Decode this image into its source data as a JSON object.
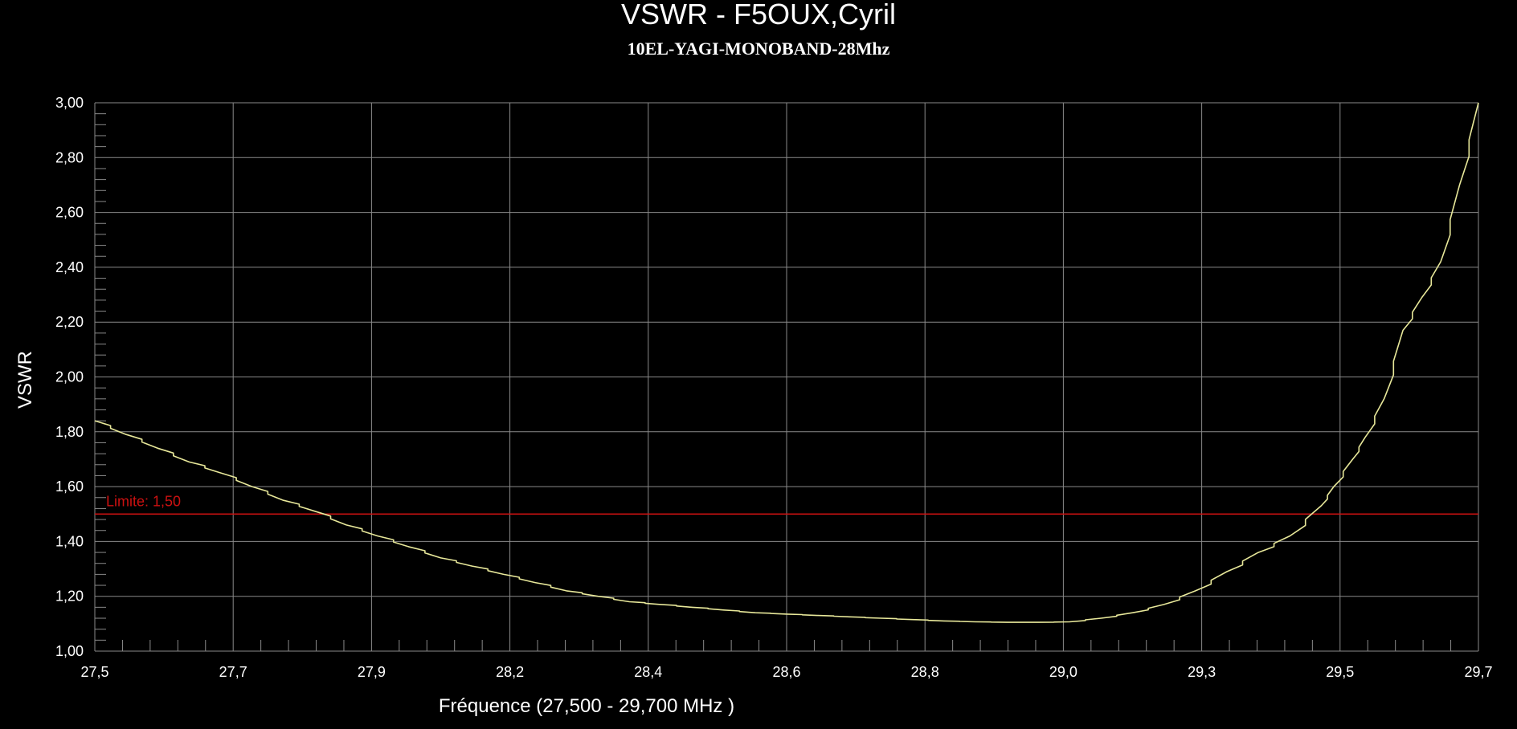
{
  "chart_data": {
    "type": "line",
    "title": "VSWR - F5OUX,Cyril",
    "subtitle": "10EL-YAGI-MONOBAND-28Mhz",
    "xlabel": "Fréquence (27,500 - 29,700 MHz )",
    "ylabel": "VSWR",
    "xlim": [
      27.5,
      29.7
    ],
    "ylim": [
      1.0,
      3.0
    ],
    "x_tick_labels": [
      "27,5",
      "27,7",
      "27,9",
      "28,2",
      "28,4",
      "28,6",
      "28,8",
      "29,0",
      "29,3",
      "29,5",
      "29,7"
    ],
    "y_tick_labels": [
      "3,00",
      "2,80",
      "2,60",
      "2,40",
      "2,20",
      "2,00",
      "1,80",
      "1,60",
      "1,40",
      "1,20",
      "1,00"
    ],
    "grid": true,
    "background": "#000000",
    "grid_color": "#8a8a8a",
    "limit": {
      "value": 1.5,
      "label": "Limite: 1,50",
      "color": "#cc1111"
    },
    "series": [
      {
        "color": "#e8e89a",
        "x": [
          27.5,
          27.55,
          27.6,
          27.65,
          27.7,
          27.75,
          27.8,
          27.85,
          27.9,
          27.95,
          28.0,
          28.05,
          28.1,
          28.15,
          28.2,
          28.25,
          28.3,
          28.35,
          28.4,
          28.45,
          28.5,
          28.55,
          28.6,
          28.65,
          28.7,
          28.75,
          28.8,
          28.85,
          28.9,
          28.95,
          29.0,
          29.05,
          29.1,
          29.15,
          29.2,
          29.25,
          29.3,
          29.35,
          29.4,
          29.45,
          29.47,
          29.5,
          29.52,
          29.55,
          29.58,
          29.61,
          29.64,
          29.67,
          29.7
        ],
        "y": [
          1.84,
          1.79,
          1.74,
          1.69,
          1.65,
          1.6,
          1.55,
          1.51,
          1.46,
          1.42,
          1.38,
          1.34,
          1.31,
          1.28,
          1.25,
          1.22,
          1.2,
          1.18,
          1.17,
          1.16,
          1.15,
          1.14,
          1.135,
          1.13,
          1.125,
          1.12,
          1.115,
          1.11,
          1.107,
          1.105,
          1.105,
          1.107,
          1.12,
          1.14,
          1.17,
          1.22,
          1.29,
          1.36,
          1.42,
          1.53,
          1.6,
          1.7,
          1.78,
          1.92,
          2.17,
          2.29,
          2.42,
          2.7,
          3.0
        ]
      }
    ]
  }
}
